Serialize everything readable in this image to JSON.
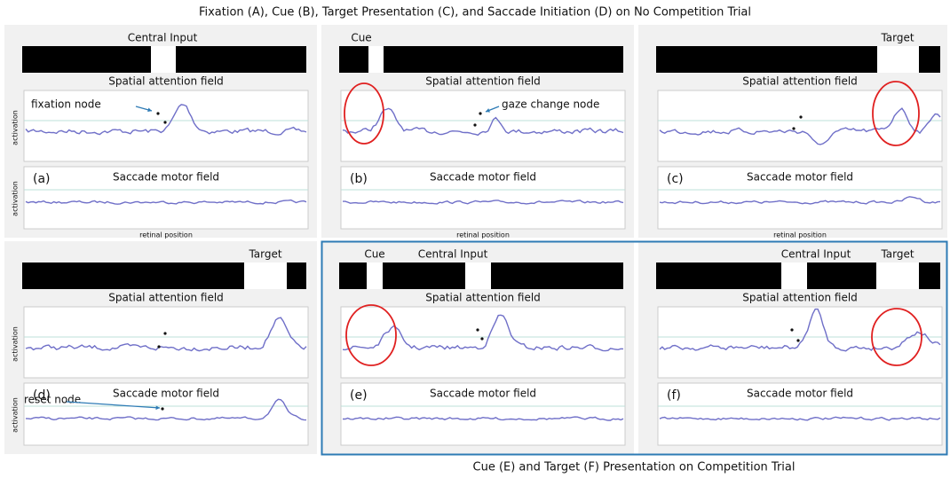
{
  "title": "Fixation (A), Cue (B), Target Presentation (C), and Saccade Initiation (D) on No Competition Trial",
  "footer": "Cue (E) and Target (F) Presentation on Competition Trial",
  "panels": [
    {
      "label": "(a)",
      "input_labels": [
        "Central Input"
      ],
      "attention_title": "Spatial attention field",
      "motor_title": "Saccade motor field",
      "y_label": "activation",
      "x_label": "retinal position",
      "annotation": "fixation node"
    },
    {
      "label": "(b)",
      "input_labels": [
        "Cue"
      ],
      "attention_title": "Spatial attention field",
      "motor_title": "Saccade motor field",
      "x_label": "retinal position",
      "annotation": "gaze change node"
    },
    {
      "label": "(c)",
      "input_labels": [
        "Target"
      ],
      "attention_title": "Spatial attention field",
      "motor_title": "Saccade motor field",
      "x_label": "retinal position"
    },
    {
      "label": "(d)",
      "input_labels": [
        "Target"
      ],
      "attention_title": "Spatial attention field",
      "motor_title": "Saccade motor field",
      "y_label": "activation",
      "annotation": "reset node"
    },
    {
      "label": "(e)",
      "input_labels": [
        "Cue",
        "Central Input"
      ],
      "attention_title": "Spatial attention field",
      "motor_title": "Saccade motor field"
    },
    {
      "label": "(f)",
      "input_labels": [
        "Central Input",
        "Target"
      ],
      "attention_title": "Spatial attention field",
      "motor_title": "Saccade motor field"
    }
  ]
}
